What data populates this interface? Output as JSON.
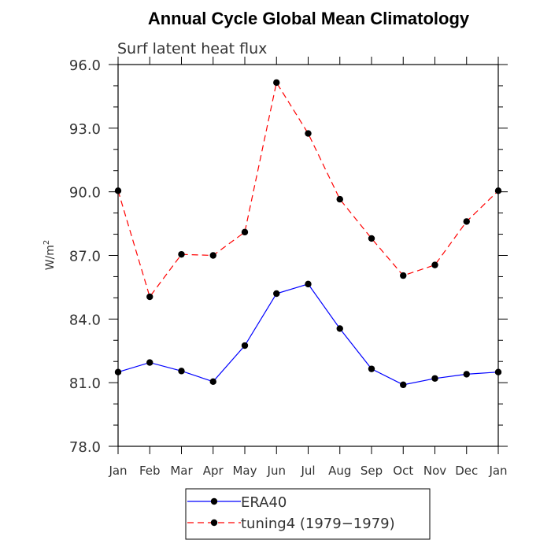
{
  "chart_data": {
    "type": "line",
    "title": "Annual Cycle Global Mean Climatology",
    "subtitle": "Surf latent heat flux",
    "ylabel": "W/m",
    "ylabel_sup": "2",
    "xlabel": "",
    "categories": [
      "Jan",
      "Feb",
      "Mar",
      "Apr",
      "May",
      "Jun",
      "Jul",
      "Aug",
      "Sep",
      "Oct",
      "Nov",
      "Dec",
      "Jan"
    ],
    "ylim": [
      78.0,
      96.0
    ],
    "yticks": [
      78.0,
      81.0,
      84.0,
      87.0,
      90.0,
      93.0,
      96.0
    ],
    "ytick_labels": [
      "78.0",
      "81.0",
      "84.0",
      "87.0",
      "90.0",
      "93.0",
      "96.0"
    ],
    "grid": false,
    "legend_position": "bottom",
    "series": [
      {
        "name": "ERA40",
        "color": "#0000ff",
        "dash": "solid",
        "marker": "circle",
        "values": [
          81.5,
          81.95,
          81.55,
          81.05,
          82.75,
          85.2,
          85.65,
          83.55,
          81.65,
          80.9,
          81.2,
          81.4,
          81.5
        ]
      },
      {
        "name": "tuning4 (1979−1979)",
        "color": "#ff0000",
        "dash": "dashed",
        "marker": "circle",
        "values": [
          90.05,
          85.05,
          87.05,
          87.0,
          88.1,
          95.15,
          92.75,
          89.65,
          87.8,
          86.05,
          86.55,
          88.6,
          90.05
        ]
      }
    ]
  }
}
